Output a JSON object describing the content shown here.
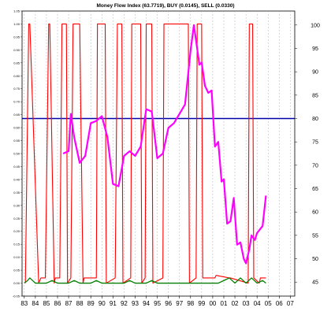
{
  "chart_data": {
    "type": "line",
    "title": "Money Flow Index (63.7719), BUY (0.0145), SELL (0.0330)",
    "x_tick_labels": [
      "83",
      "84",
      "85",
      "86",
      "87",
      "88",
      "89",
      "90",
      "91",
      "92",
      "93",
      "94",
      "95",
      "96",
      "97",
      "98",
      "99",
      "00",
      "01",
      "02",
      "03",
      "04",
      "05",
      "06",
      "07"
    ],
    "left_axis": {
      "range": [
        -0.05,
        1.05
      ],
      "tick_labels": [
        "1.05",
        "1.00",
        "0.95",
        "0.90",
        "0.85",
        "0.80",
        "0.75",
        "0.70",
        "0.65",
        "0.60",
        "0.55",
        "0.50",
        "0.45",
        "0.40",
        "0.35",
        "0.30",
        "0.25",
        "0.20",
        "0.15",
        "0.10",
        "0.05",
        "0.00",
        "-0.05"
      ]
    },
    "right_axis": {
      "range": [
        42,
        103
      ],
      "tick_labels": [
        "100",
        "95",
        "90",
        "85",
        "80",
        "75",
        "70",
        "65",
        "60",
        "55",
        "50",
        "45"
      ]
    },
    "reference_line": {
      "axis": "right",
      "value": 80,
      "color": "#0000aa"
    },
    "series": [
      {
        "axis": "right",
        "color": "#ff00ff",
        "x": [
          86.5,
          87.0,
          87.2,
          87.5,
          88.0,
          88.5,
          89.0,
          89.5,
          90.0,
          90.5,
          91.0,
          91.5,
          92.0,
          92.5,
          93.0,
          93.5,
          94.0,
          94.5,
          95.0,
          95.5,
          96.0,
          96.5,
          97.0,
          97.5,
          98.0,
          98.3,
          98.8,
          99.0,
          99.3,
          99.6,
          99.9,
          100.2,
          100.5,
          100.8,
          101.0,
          101.3,
          101.6,
          101.9,
          102.2,
          102.5,
          102.8,
          103.0,
          103.3,
          103.5,
          103.8,
          104.0,
          104.5,
          104.8
        ],
        "y": [
          72.5,
          73.0,
          81.0,
          76.0,
          70.5,
          72.0,
          79.0,
          79.5,
          80.5,
          76.0,
          66.0,
          65.5,
          72.0,
          73.0,
          72.0,
          74.0,
          82.0,
          81.5,
          71.5,
          72.5,
          78.0,
          79.0,
          81.0,
          83.0,
          94.5,
          100.0,
          91.5,
          92.0,
          87.0,
          85.5,
          86.0,
          74.0,
          75.0,
          66.5,
          67.0,
          57.5,
          58.0,
          63.0,
          53.0,
          53.5,
          50.0,
          49.0,
          52.0,
          55.0,
          54.0,
          55.5,
          57.0,
          63.5
        ]
      },
      {
        "axis": "left",
        "color": "#ff0000",
        "x": [
          83.1,
          83.4,
          83.5,
          84.3,
          84.5,
          84.9,
          85.2,
          85.3,
          85.7,
          85.8,
          86.2,
          86.4,
          86.8,
          86.9,
          87.2,
          87.4,
          88.0,
          88.3,
          88.4,
          89.5,
          89.6,
          90.3,
          90.4,
          91.2,
          91.4,
          91.8,
          91.9,
          92.6,
          92.7,
          93.5,
          93.6,
          93.9,
          94.0,
          94.5,
          94.6,
          95.5,
          95.6,
          97.8,
          97.9,
          98.5,
          98.6,
          99.0,
          99.1,
          100.2,
          100.3,
          101.5,
          101.6,
          103.2,
          103.3,
          103.6,
          103.7,
          104.2,
          104.3,
          104.8
        ],
        "y": [
          0.0,
          1.0,
          1.0,
          0.0,
          0.02,
          0.02,
          1.0,
          1.0,
          0.0,
          0.02,
          0.02,
          1.0,
          1.0,
          0.0,
          0.02,
          1.0,
          1.0,
          0.0,
          0.02,
          0.02,
          1.0,
          1.0,
          0.0,
          0.02,
          1.0,
          1.0,
          0.0,
          0.02,
          1.0,
          1.0,
          0.0,
          0.02,
          1.0,
          1.0,
          0.0,
          0.02,
          1.0,
          1.0,
          0.0,
          0.02,
          1.0,
          1.0,
          0.02,
          0.02,
          0.03,
          0.02,
          0.02,
          0.0,
          1.0,
          1.0,
          0.02,
          0.0,
          0.02,
          0.02
        ]
      },
      {
        "axis": "left",
        "color": "#008000",
        "x": [
          83.0,
          83.3,
          83.5,
          84.0,
          84.5,
          85.0,
          85.5,
          86.0,
          86.5,
          87.0,
          87.5,
          88.0,
          88.5,
          89.0,
          89.5,
          90.0,
          90.5,
          91.0,
          91.5,
          92.0,
          92.5,
          93.0,
          93.5,
          94.0,
          94.5,
          95.0,
          95.5,
          96.0,
          96.5,
          97.0,
          97.5,
          98.0,
          98.5,
          99.0,
          99.5,
          100.0,
          100.5,
          101.0,
          101.5,
          102.0,
          102.5,
          103.0,
          103.5,
          104.0,
          104.5,
          104.8
        ],
        "y": [
          0.0,
          0.01,
          0.02,
          0.0,
          0.0,
          0.0,
          0.01,
          0.0,
          0.0,
          0.0,
          0.01,
          0.0,
          0.0,
          0.0,
          0.01,
          0.0,
          0.0,
          0.0,
          0.0,
          0.0,
          0.01,
          0.0,
          0.0,
          0.0,
          0.01,
          0.0,
          0.0,
          0.0,
          0.0,
          0.0,
          0.0,
          0.0,
          0.0,
          0.0,
          0.0,
          0.0,
          0.0,
          0.01,
          0.02,
          0.0,
          0.02,
          0.0,
          0.02,
          0.0,
          0.01,
          0.0
        ]
      }
    ]
  }
}
